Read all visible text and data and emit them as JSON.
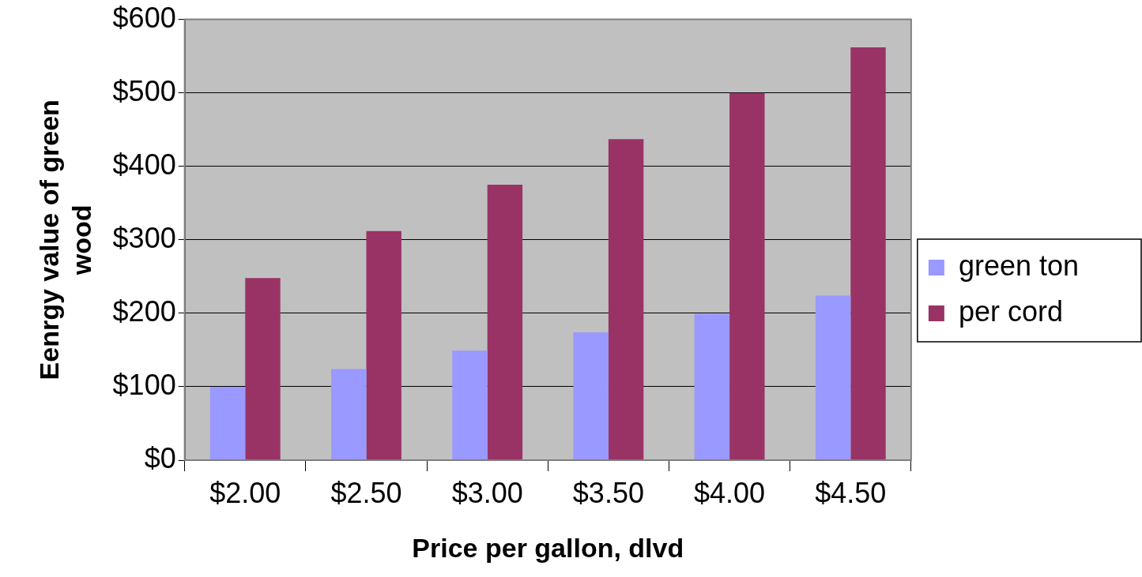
{
  "chart_data": {
    "type": "bar",
    "xlabel": "Price per gallon, dlvd",
    "ylabel": "Eenrgy value of green wood",
    "categories": [
      "$2.00",
      "$2.50",
      "$3.00",
      "$3.50",
      "$4.00",
      "$4.50"
    ],
    "series": [
      {
        "name": "green ton",
        "color": "#9999ff",
        "values": [
          100,
          124,
          149,
          174,
          199,
          224
        ]
      },
      {
        "name": "per cord",
        "color": "#993366",
        "values": [
          248,
          312,
          375,
          437,
          500,
          562
        ]
      }
    ],
    "ylim": [
      0,
      600
    ],
    "yticks": [
      {
        "value": 0,
        "label": "$0"
      },
      {
        "value": 100,
        "label": "$100"
      },
      {
        "value": 200,
        "label": "$200"
      },
      {
        "value": 300,
        "label": "$300"
      },
      {
        "value": 400,
        "label": "$400"
      },
      {
        "value": 500,
        "label": "$500"
      },
      {
        "value": 600,
        "label": "$600"
      }
    ],
    "grid": "y",
    "legend": "right"
  }
}
